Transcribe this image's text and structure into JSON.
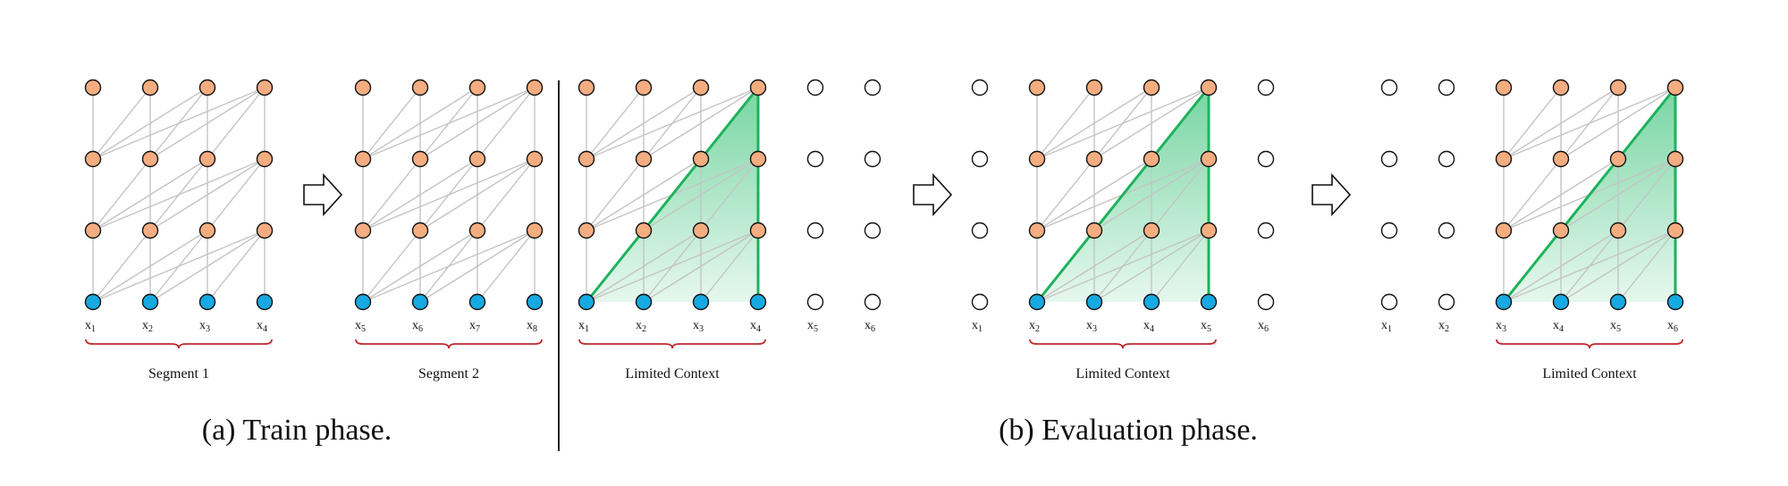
{
  "colors": {
    "hidden_node": "#f4ad80",
    "input_node": "#17a9e1",
    "empty_node": "#ffffff",
    "edge": "#c4c4c4",
    "context_line": "#1db25b",
    "context_fill": "#2fbf71",
    "brace": "#c0282d",
    "divider": "#222222"
  },
  "panels": [
    {
      "id": "train-seg1",
      "labels": [
        "x1",
        "x2",
        "x3",
        "x4"
      ],
      "empty_left": 0,
      "empty_right": 0,
      "highlight": false,
      "brace_label": "Segment 1"
    },
    {
      "id": "train-seg2",
      "labels": [
        "x5",
        "x6",
        "x7",
        "x8"
      ],
      "empty_left": 0,
      "empty_right": 0,
      "highlight": false,
      "brace_label": "Segment 2"
    },
    {
      "id": "eval-1",
      "labels": [
        "x1",
        "x2",
        "x3",
        "x4",
        "x5",
        "x6"
      ],
      "empty_left": 0,
      "empty_right": 2,
      "highlight": true,
      "brace_label": "Limited Context"
    },
    {
      "id": "eval-2",
      "labels": [
        "x1",
        "x2",
        "x3",
        "x4",
        "x5",
        "x6"
      ],
      "empty_left": 1,
      "empty_right": 1,
      "highlight": true,
      "brace_label": "Limited Context"
    },
    {
      "id": "eval-3",
      "labels": [
        "x1",
        "x2",
        "x3",
        "x4",
        "x5",
        "x6"
      ],
      "empty_left": 2,
      "empty_right": 0,
      "highlight": true,
      "brace_label": "Limited Context"
    }
  ],
  "captions": {
    "train": "(a) Train phase.",
    "eval": "(b) Evaluation phase."
  }
}
